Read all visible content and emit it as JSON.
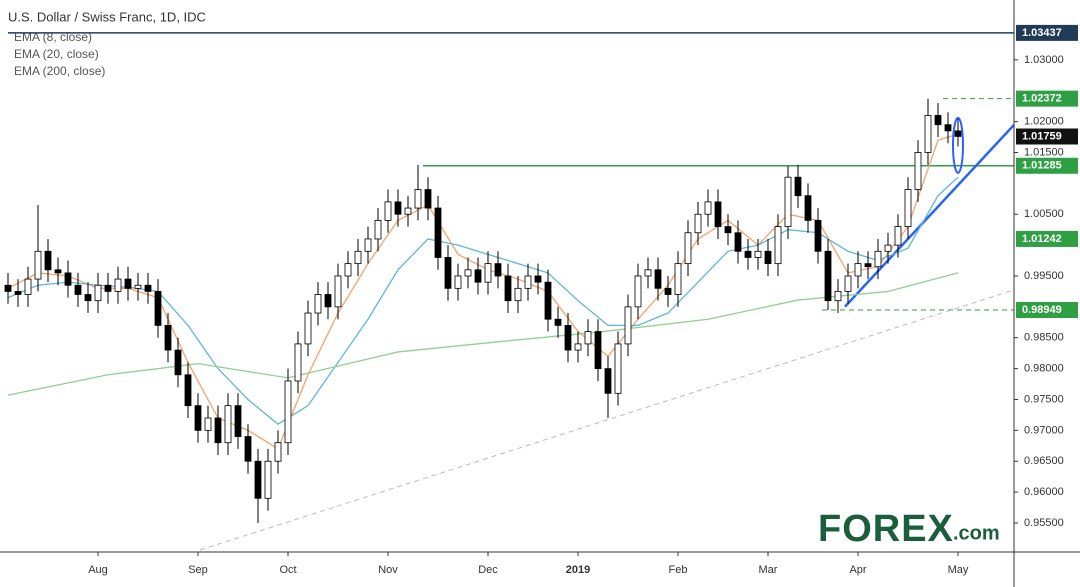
{
  "chart_data": {
    "type": "candlestick",
    "title": "U.S. Dollar / Swiss Franc, 1D, IDC",
    "categories": [
      null,
      null,
      null,
      null,
      null,
      null,
      null,
      null,
      null,
      "Aug",
      null,
      null,
      null,
      null,
      null,
      null,
      null,
      null,
      null,
      "Sep",
      null,
      null,
      null,
      null,
      null,
      null,
      null,
      null,
      "Oct",
      null,
      null,
      null,
      null,
      null,
      null,
      null,
      null,
      null,
      "Nov",
      null,
      null,
      null,
      null,
      null,
      null,
      null,
      null,
      null,
      "Dec",
      null,
      null,
      null,
      null,
      null,
      null,
      null,
      null,
      "2019",
      null,
      null,
      null,
      null,
      null,
      null,
      null,
      null,
      null,
      "Feb",
      null,
      null,
      null,
      null,
      null,
      null,
      null,
      null,
      "Mar",
      null,
      null,
      null,
      null,
      null,
      null,
      null,
      null,
      "Apr",
      null,
      null,
      null,
      null,
      null,
      null,
      null,
      null,
      null,
      "May"
    ],
    "open": [
      0.9935,
      0.9925,
      0.992,
      0.9945,
      0.999,
      0.996,
      0.9955,
      0.9935,
      0.992,
      0.991,
      0.9935,
      0.9925,
      0.9945,
      0.993,
      0.9935,
      0.9925,
      0.987,
      0.983,
      0.979,
      0.974,
      0.97,
      0.972,
      0.968,
      0.974,
      0.969,
      0.965,
      0.959,
      0.965,
      0.968,
      0.978,
      0.984,
      0.989,
      0.992,
      0.99,
      0.995,
      0.997,
      0.999,
      1.001,
      1.004,
      1.007,
      1.005,
      1.006,
      1.009,
      1.006,
      0.998,
      0.993,
      0.995,
      0.996,
      0.994,
      0.997,
      0.995,
      0.991,
      0.993,
      0.995,
      0.994,
      0.988,
      0.987,
      0.983,
      0.984,
      0.986,
      0.98,
      0.976,
      0.984,
      0.99,
      0.995,
      0.996,
      0.993,
      0.992,
      0.997,
      1.002,
      1.005,
      1.007,
      1.003,
      1.002,
      0.999,
      0.998,
      0.999,
      0.997,
      1.003,
      1.011,
      1.008,
      1.004,
      0.999,
      0.991,
      0.9925,
      0.995,
      0.997,
      0.9965,
      0.999,
      1.0,
      1.003,
      1.009,
      1.015,
      1.021,
      1.0195,
      1.0185
    ],
    "high": [
      0.9955,
      0.9945,
      0.9965,
      1.0065,
      1.001,
      0.998,
      0.9975,
      0.9955,
      0.994,
      0.9955,
      0.9955,
      0.9965,
      0.9965,
      0.9955,
      0.9955,
      0.9945,
      0.989,
      0.985,
      0.981,
      0.976,
      0.974,
      0.974,
      0.976,
      0.976,
      0.971,
      0.967,
      0.967,
      0.97,
      0.98,
      0.986,
      0.991,
      0.994,
      0.994,
      0.997,
      0.999,
      1.001,
      1.003,
      1.006,
      1.009,
      1.009,
      1.008,
      1.013,
      1.011,
      1.008,
      1.0,
      0.997,
      0.998,
      0.998,
      0.999,
      0.999,
      0.997,
      0.995,
      0.997,
      0.997,
      0.996,
      0.99,
      0.989,
      0.986,
      0.988,
      0.988,
      0.982,
      0.986,
      0.992,
      0.997,
      0.998,
      0.998,
      0.995,
      0.999,
      1.004,
      1.007,
      1.009,
      1.009,
      1.005,
      1.004,
      1.001,
      1.001,
      1.001,
      1.005,
      1.0128,
      1.013,
      1.01,
      1.006,
      1.001,
      0.9945,
      0.997,
      0.999,
      0.999,
      1.001,
      1.002,
      1.005,
      1.011,
      1.017,
      1.0237,
      1.023,
      1.0215,
      1.0205
    ],
    "low": [
      0.9905,
      0.99,
      0.99,
      0.9925,
      0.994,
      0.9935,
      0.9915,
      0.99,
      0.989,
      0.989,
      0.9905,
      0.9905,
      0.991,
      0.991,
      0.9905,
      0.985,
      0.981,
      0.977,
      0.972,
      0.968,
      0.968,
      0.966,
      0.966,
      0.967,
      0.963,
      0.955,
      0.957,
      0.963,
      0.966,
      0.976,
      0.982,
      0.987,
      0.988,
      0.988,
      0.993,
      0.995,
      0.997,
      0.999,
      1.002,
      1.003,
      1.003,
      1.004,
      1.004,
      0.996,
      0.991,
      0.991,
      0.993,
      0.992,
      0.992,
      0.993,
      0.989,
      0.989,
      0.991,
      0.992,
      0.986,
      0.985,
      0.981,
      0.981,
      0.982,
      0.978,
      0.972,
      0.974,
      0.982,
      0.988,
      0.993,
      0.991,
      0.99,
      0.99,
      0.995,
      1.0,
      1.003,
      1.001,
      1.0,
      0.997,
      0.996,
      0.996,
      0.995,
      0.995,
      1.001,
      1.006,
      1.002,
      0.997,
      0.9895,
      0.989,
      0.9905,
      0.993,
      0.9945,
      0.9945,
      0.997,
      0.998,
      1.001,
      1.007,
      1.013,
      1.0175,
      1.0165,
      1.016
    ],
    "close": [
      0.9925,
      0.992,
      0.9945,
      0.999,
      0.996,
      0.9955,
      0.9935,
      0.992,
      0.991,
      0.9935,
      0.9925,
      0.9945,
      0.993,
      0.9935,
      0.9925,
      0.987,
      0.983,
      0.979,
      0.974,
      0.97,
      0.972,
      0.968,
      0.974,
      0.969,
      0.965,
      0.959,
      0.965,
      0.968,
      0.978,
      0.984,
      0.989,
      0.992,
      0.99,
      0.995,
      0.997,
      0.999,
      1.001,
      1.004,
      1.007,
      1.005,
      1.006,
      1.009,
      1.006,
      0.998,
      0.993,
      0.995,
      0.996,
      0.994,
      0.997,
      0.995,
      0.991,
      0.993,
      0.995,
      0.994,
      0.988,
      0.987,
      0.983,
      0.984,
      0.986,
      0.98,
      0.976,
      0.984,
      0.99,
      0.995,
      0.996,
      0.993,
      0.992,
      0.997,
      1.002,
      1.005,
      1.007,
      1.003,
      1.002,
      0.999,
      0.998,
      0.999,
      0.997,
      1.003,
      1.011,
      1.008,
      1.004,
      0.999,
      0.991,
      0.9925,
      0.995,
      0.997,
      0.9965,
      0.999,
      1.0,
      1.003,
      1.009,
      1.015,
      1.021,
      1.0195,
      1.0185,
      1.0176
    ],
    "ema": [
      {
        "name": "EMA (8, close)",
        "color": "#f5a36b",
        "x": [
          0,
          3,
          6,
          9,
          12,
          15,
          18,
          21,
          24,
          27,
          30,
          33,
          36,
          39,
          42,
          45,
          48,
          51,
          54,
          57,
          60,
          63,
          66,
          69,
          72,
          75,
          78,
          81,
          84,
          87,
          90,
          93,
          95
        ],
        "values": [
          0.993,
          0.9955,
          0.995,
          0.993,
          0.993,
          0.9915,
          0.981,
          0.972,
          0.97,
          0.967,
          0.979,
          0.989,
          0.997,
          1.004,
          1.0065,
          0.9985,
          0.996,
          0.9945,
          0.9925,
          0.986,
          0.982,
          0.988,
          0.9935,
          1.001,
          1.004,
          1.0,
          1.005,
          1.004,
          0.9955,
          0.9965,
          1.003,
          1.017,
          1.018
        ]
      },
      {
        "name": "EMA (20, close)",
        "color": "#5fb6d9",
        "x": [
          0,
          3,
          6,
          9,
          12,
          15,
          18,
          21,
          24,
          27,
          30,
          33,
          36,
          39,
          42,
          45,
          48,
          51,
          54,
          57,
          60,
          63,
          66,
          69,
          72,
          75,
          78,
          81,
          84,
          87,
          90,
          93,
          95
        ],
        "values": [
          0.9915,
          0.9935,
          0.994,
          0.9935,
          0.9932,
          0.9925,
          0.987,
          0.98,
          0.975,
          0.971,
          0.974,
          0.981,
          0.988,
          0.996,
          1.001,
          1.0,
          0.9985,
          0.997,
          0.9955,
          0.991,
          0.987,
          0.987,
          0.989,
          0.994,
          0.999,
          1.0,
          1.0025,
          1.002,
          0.999,
          0.9975,
          0.9995,
          1.008,
          1.011
        ]
      },
      {
        "name": "EMA (200, close)",
        "color": "#8fd18f",
        "x": [
          0,
          10,
          19,
          28,
          39,
          50,
          59,
          70,
          79,
          88,
          95
        ],
        "values": [
          0.9757,
          0.979,
          0.9808,
          0.9785,
          0.9827,
          0.9845,
          0.9859,
          0.988,
          0.9911,
          0.9925,
          0.9955
        ]
      }
    ],
    "ylim": [
      0.9503,
      1.0384
    ],
    "yticks": [
      {
        "value": 0.955,
        "label": "0.95500"
      },
      {
        "value": 0.96,
        "label": "0.96000"
      },
      {
        "value": 0.965,
        "label": "0.96500"
      },
      {
        "value": 0.97,
        "label": "0.97000"
      },
      {
        "value": 0.975,
        "label": "0.97500"
      },
      {
        "value": 0.98,
        "label": "0.98000"
      },
      {
        "value": 0.985,
        "label": "0.98500"
      },
      {
        "value": 0.995,
        "label": "0.99500"
      },
      {
        "value": 1.005,
        "label": "1.00500"
      },
      {
        "value": 1.015,
        "label": "1.01500"
      },
      {
        "value": 1.02,
        "label": "1.02000"
      },
      {
        "value": 1.03,
        "label": "1.03000"
      }
    ],
    "levels": [
      {
        "value": 1.03437,
        "color": "#1f3b57",
        "from": 0,
        "style": "solid"
      },
      {
        "value": 1.02372,
        "color": "#2ea043",
        "from": 93.5,
        "style": "dashed"
      },
      {
        "value": 1.01285,
        "color": "#2ea043",
        "from": 41.5,
        "style": "solid"
      },
      {
        "value": 0.98949,
        "color": "#2ea043",
        "from": 81.4,
        "style": "dashed"
      }
    ],
    "price_labels": [
      {
        "value": 1.03437,
        "color": "#1f3b57"
      },
      {
        "value": 1.02372,
        "color": "#2ea043"
      },
      {
        "value": 1.01759,
        "color": "#111111"
      },
      {
        "value": 1.01285,
        "color": "#2ea043"
      },
      {
        "value": 1.01242,
        "color": "#2ea043",
        "level": 1.001
      },
      {
        "value": 0.98949,
        "color": "#2ea043"
      }
    ],
    "trendlines": [
      {
        "from": [
          83.7,
          0.99003
        ],
        "to": [
          100.6,
          1.01947
        ],
        "color": "#2962ff",
        "style": "solid"
      },
      {
        "from": [
          19.2,
          0.95062
        ],
        "to": [
          100.6,
          0.99274
        ],
        "color": "#bbbbbb",
        "style": "dashed"
      }
    ],
    "highlight": {
      "x": 95,
      "range": [
        1.0117,
        1.0206
      ],
      "color": "#2962ff"
    },
    "logo": {
      "main": "FOREX",
      "suffix": ".com"
    }
  }
}
